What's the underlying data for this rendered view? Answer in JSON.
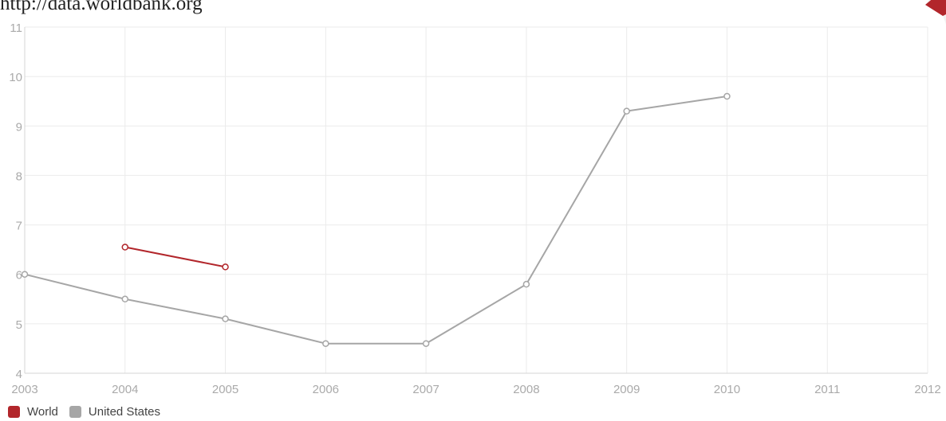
{
  "source_text": "http://data.worldbank.org",
  "chart_data": {
    "type": "line",
    "x": [
      2003,
      2004,
      2005,
      2006,
      2007,
      2008,
      2009,
      2010,
      2011,
      2012
    ],
    "xlim": [
      2003,
      2012
    ],
    "ylim": [
      4,
      11
    ],
    "yticks": [
      4,
      5,
      6,
      7,
      8,
      9,
      10,
      11
    ],
    "grid": true,
    "legend_position": "bottom-left",
    "series": [
      {
        "name": "World",
        "color": "#b2262b",
        "points": [
          [
            2004,
            6.55
          ],
          [
            2005,
            6.15
          ]
        ]
      },
      {
        "name": "United States",
        "color": "#a6a6a6",
        "points": [
          [
            2003,
            6.0
          ],
          [
            2004,
            5.5
          ],
          [
            2005,
            5.1
          ],
          [
            2006,
            4.6
          ],
          [
            2007,
            4.6
          ],
          [
            2008,
            5.8
          ],
          [
            2009,
            9.3
          ],
          [
            2010,
            9.6
          ]
        ]
      }
    ]
  },
  "colors": {
    "grid": "#ebebeb",
    "axis_text": "#aaaaaa",
    "badge": "#b2262b"
  },
  "icons": {
    "corner_badge": "ribbon-icon"
  }
}
